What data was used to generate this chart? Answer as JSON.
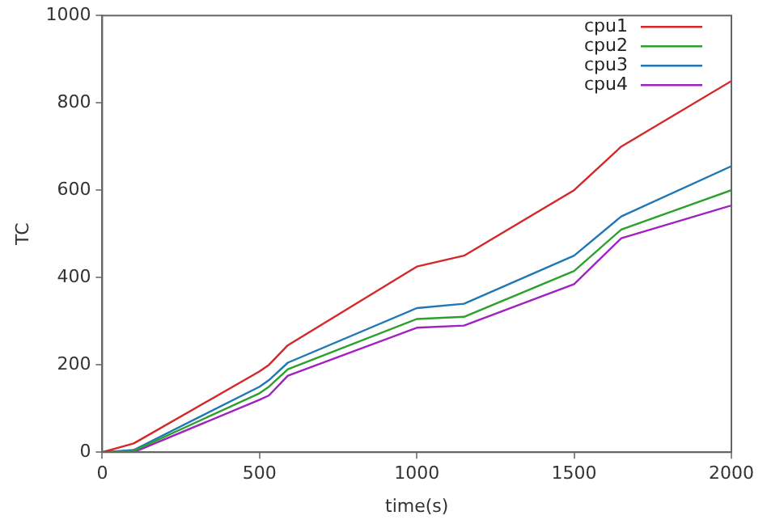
{
  "chart_data": {
    "type": "line",
    "xlabel": "time(s)",
    "ylabel": "TC",
    "xlim": [
      0,
      2000
    ],
    "ylim": [
      0,
      1000
    ],
    "xticks": [
      0,
      500,
      1000,
      1500,
      2000
    ],
    "yticks": [
      0,
      200,
      400,
      600,
      800,
      1000
    ],
    "grid": false,
    "legend": "top right",
    "marker": "none",
    "line_style": "solid",
    "x": [
      0,
      100,
      500,
      530,
      590,
      1000,
      1150,
      1500,
      1650,
      2000
    ],
    "series": [
      {
        "name": "cpu1",
        "color": "#d62728",
        "values": [
          0,
          20,
          185,
          200,
          245,
          425,
          450,
          600,
          700,
          850
        ]
      },
      {
        "name": "cpu2",
        "color": "#2ca02c",
        "values": [
          0,
          3,
          135,
          150,
          190,
          305,
          310,
          415,
          510,
          600
        ]
      },
      {
        "name": "cpu3",
        "color": "#1f77b4",
        "values": [
          0,
          5,
          150,
          165,
          205,
          330,
          340,
          450,
          540,
          655
        ]
      },
      {
        "name": "cpu4",
        "color": "#a020c0",
        "values": [
          0,
          0,
          120,
          130,
          175,
          285,
          290,
          385,
          490,
          565
        ]
      }
    ]
  }
}
